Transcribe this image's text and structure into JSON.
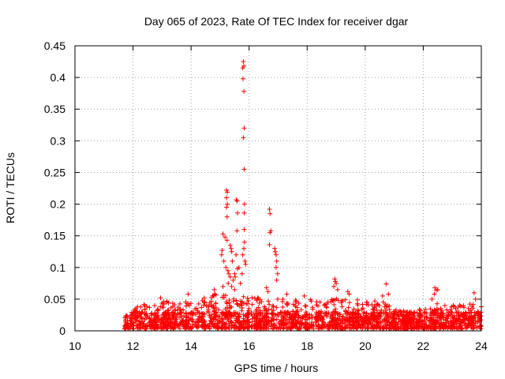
{
  "chart_data": {
    "type": "scatter",
    "title": "Day 065 of 2023, Rate Of TEC Index for receiver dgar",
    "xlabel": "GPS time / hours",
    "ylabel": "ROTI / TECUs",
    "xlim": [
      10,
      24
    ],
    "ylim": [
      0,
      0.45
    ],
    "x_ticks": [
      10,
      12,
      14,
      16,
      18,
      20,
      22,
      24
    ],
    "x_tick_labels": [
      "10",
      "12",
      "14",
      "16",
      "18",
      "20",
      "22",
      "24"
    ],
    "y_ticks": [
      0,
      0.05,
      0.1,
      0.15,
      0.2,
      0.25,
      0.3,
      0.35,
      0.4,
      0.45
    ],
    "y_tick_labels": [
      "0",
      "0.05",
      "0.1",
      "0.15",
      "0.2",
      "0.25",
      "0.3",
      "0.35",
      "0.4",
      "0.45"
    ],
    "grid": true,
    "marker": "+",
    "color": "#ff0000",
    "baseline_band": {
      "x_range": [
        11.7,
        24.0
      ],
      "y_range": [
        0.003,
        0.03
      ],
      "density_per_hour": 90
    },
    "baseline_envelope": [
      {
        "x": 11.7,
        "y": 0.022
      },
      {
        "x": 12.0,
        "y": 0.035
      },
      {
        "x": 12.3,
        "y": 0.045
      },
      {
        "x": 12.8,
        "y": 0.04
      },
      {
        "x": 13.0,
        "y": 0.05
      },
      {
        "x": 13.5,
        "y": 0.042
      },
      {
        "x": 14.0,
        "y": 0.048
      },
      {
        "x": 14.5,
        "y": 0.055
      },
      {
        "x": 15.0,
        "y": 0.06
      },
      {
        "x": 15.5,
        "y": 0.058
      },
      {
        "x": 16.0,
        "y": 0.055
      },
      {
        "x": 16.5,
        "y": 0.05
      },
      {
        "x": 17.0,
        "y": 0.055
      },
      {
        "x": 17.5,
        "y": 0.048
      },
      {
        "x": 18.0,
        "y": 0.052
      },
      {
        "x": 18.5,
        "y": 0.045
      },
      {
        "x": 19.0,
        "y": 0.055
      },
      {
        "x": 19.5,
        "y": 0.05
      },
      {
        "x": 20.0,
        "y": 0.048
      },
      {
        "x": 20.5,
        "y": 0.05
      },
      {
        "x": 21.0,
        "y": 0.035
      },
      {
        "x": 21.5,
        "y": 0.03
      },
      {
        "x": 22.0,
        "y": 0.035
      },
      {
        "x": 22.5,
        "y": 0.045
      },
      {
        "x": 23.0,
        "y": 0.04
      },
      {
        "x": 23.5,
        "y": 0.045
      },
      {
        "x": 24.0,
        "y": 0.04
      }
    ],
    "points": [
      {
        "x": 15.8,
        "y": 0.425
      },
      {
        "x": 15.82,
        "y": 0.418
      },
      {
        "x": 15.78,
        "y": 0.415
      },
      {
        "x": 15.79,
        "y": 0.398
      },
      {
        "x": 15.82,
        "y": 0.378
      },
      {
        "x": 15.83,
        "y": 0.32
      },
      {
        "x": 15.8,
        "y": 0.305
      },
      {
        "x": 15.83,
        "y": 0.255
      },
      {
        "x": 15.84,
        "y": 0.2
      },
      {
        "x": 15.83,
        "y": 0.186
      },
      {
        "x": 15.83,
        "y": 0.16
      },
      {
        "x": 15.84,
        "y": 0.14
      },
      {
        "x": 15.82,
        "y": 0.13
      },
      {
        "x": 15.86,
        "y": 0.11
      },
      {
        "x": 15.88,
        "y": 0.105
      },
      {
        "x": 15.78,
        "y": 0.12
      },
      {
        "x": 15.76,
        "y": 0.09
      },
      {
        "x": 15.22,
        "y": 0.222
      },
      {
        "x": 15.25,
        "y": 0.219
      },
      {
        "x": 15.22,
        "y": 0.21
      },
      {
        "x": 15.25,
        "y": 0.2
      },
      {
        "x": 15.22,
        "y": 0.195
      },
      {
        "x": 15.24,
        "y": 0.18
      },
      {
        "x": 15.56,
        "y": 0.207
      },
      {
        "x": 15.59,
        "y": 0.205
      },
      {
        "x": 15.6,
        "y": 0.186
      },
      {
        "x": 15.58,
        "y": 0.158
      },
      {
        "x": 15.55,
        "y": 0.12
      },
      {
        "x": 15.1,
        "y": 0.153
      },
      {
        "x": 15.17,
        "y": 0.148
      },
      {
        "x": 15.24,
        "y": 0.143
      },
      {
        "x": 15.35,
        "y": 0.135
      },
      {
        "x": 15.38,
        "y": 0.13
      },
      {
        "x": 15.4,
        "y": 0.125
      },
      {
        "x": 15.07,
        "y": 0.127
      },
      {
        "x": 15.05,
        "y": 0.12
      },
      {
        "x": 15.13,
        "y": 0.11
      },
      {
        "x": 15.2,
        "y": 0.1
      },
      {
        "x": 15.27,
        "y": 0.095
      },
      {
        "x": 15.3,
        "y": 0.09
      },
      {
        "x": 15.35,
        "y": 0.085
      },
      {
        "x": 15.42,
        "y": 0.11
      },
      {
        "x": 15.45,
        "y": 0.08
      },
      {
        "x": 15.5,
        "y": 0.09
      },
      {
        "x": 15.52,
        "y": 0.085
      },
      {
        "x": 15.6,
        "y": 0.098
      },
      {
        "x": 15.65,
        "y": 0.1
      },
      {
        "x": 15.28,
        "y": 0.075
      },
      {
        "x": 15.1,
        "y": 0.07
      },
      {
        "x": 15.4,
        "y": 0.07
      },
      {
        "x": 15.5,
        "y": 0.065
      },
      {
        "x": 15.7,
        "y": 0.075
      },
      {
        "x": 16.7,
        "y": 0.192
      },
      {
        "x": 16.72,
        "y": 0.185
      },
      {
        "x": 16.75,
        "y": 0.158
      },
      {
        "x": 16.72,
        "y": 0.155
      },
      {
        "x": 16.7,
        "y": 0.136
      },
      {
        "x": 16.88,
        "y": 0.13
      },
      {
        "x": 16.9,
        "y": 0.125
      },
      {
        "x": 16.93,
        "y": 0.12
      },
      {
        "x": 16.95,
        "y": 0.11
      },
      {
        "x": 16.93,
        "y": 0.1
      },
      {
        "x": 16.98,
        "y": 0.09
      },
      {
        "x": 16.95,
        "y": 0.08
      },
      {
        "x": 16.6,
        "y": 0.068
      },
      {
        "x": 16.65,
        "y": 0.062
      },
      {
        "x": 18.95,
        "y": 0.082
      },
      {
        "x": 18.97,
        "y": 0.078
      },
      {
        "x": 19.0,
        "y": 0.075
      },
      {
        "x": 18.92,
        "y": 0.07
      },
      {
        "x": 19.05,
        "y": 0.065
      },
      {
        "x": 19.4,
        "y": 0.062
      },
      {
        "x": 19.45,
        "y": 0.058
      },
      {
        "x": 20.72,
        "y": 0.074
      },
      {
        "x": 20.6,
        "y": 0.055
      },
      {
        "x": 20.8,
        "y": 0.058
      },
      {
        "x": 22.4,
        "y": 0.068
      },
      {
        "x": 22.45,
        "y": 0.064
      },
      {
        "x": 22.5,
        "y": 0.065
      },
      {
        "x": 22.38,
        "y": 0.058
      },
      {
        "x": 22.3,
        "y": 0.05
      },
      {
        "x": 23.75,
        "y": 0.06
      },
      {
        "x": 23.8,
        "y": 0.05
      },
      {
        "x": 24.0,
        "y": 0.038
      },
      {
        "x": 17.3,
        "y": 0.058
      },
      {
        "x": 17.9,
        "y": 0.055
      },
      {
        "x": 14.8,
        "y": 0.065
      },
      {
        "x": 13.9,
        "y": 0.058
      },
      {
        "x": 12.95,
        "y": 0.052
      }
    ]
  }
}
